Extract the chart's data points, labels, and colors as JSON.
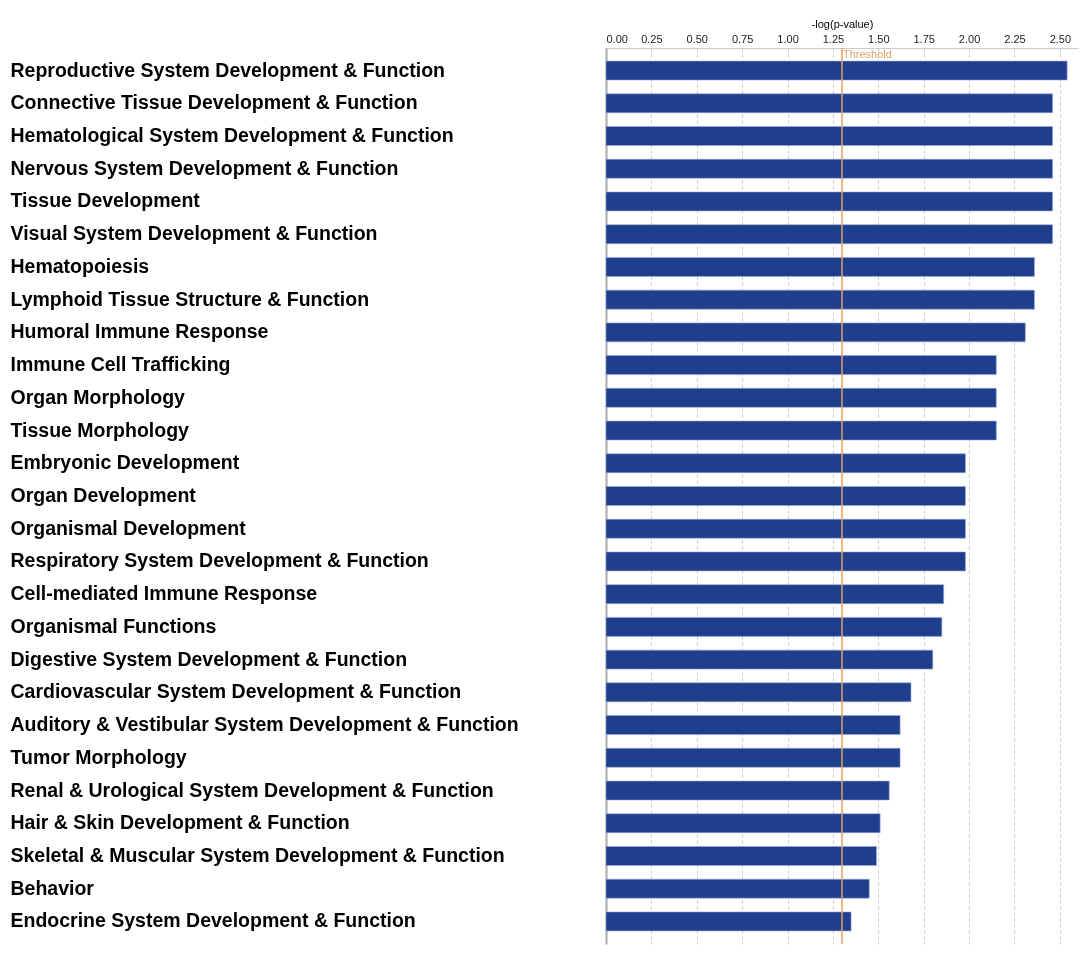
{
  "chart_data": {
    "type": "bar",
    "orientation": "horizontal",
    "xlabel": "-log(p-value)",
    "categories": [
      "Reproductive System Development & Function",
      "Connective Tissue Development & Function",
      "Hematological System Development & Function",
      "Nervous System Development & Function",
      "Tissue Development",
      "Visual System Development & Function",
      "Hematopoiesis",
      "Lymphoid Tissue Structure & Function",
      "Humoral Immune Response",
      "Immune Cell Trafficking",
      "Organ Morphology",
      "Tissue Morphology",
      "Embryonic Development",
      "Organ Development",
      "Organismal Development",
      "Respiratory System Development & Function",
      "Cell-mediated Immune Response",
      "Organismal Functions",
      "Digestive System Development & Function",
      "Cardiovascular System Development & Function",
      "Auditory & Vestibular System Development & Function",
      "Tumor Morphology",
      "Renal & Urological System Development & Function",
      "Hair & Skin Development & Function",
      "Skeletal & Muscular System Development & Function",
      "Behavior",
      "Endocrine System Development & Function"
    ],
    "values": [
      2.54,
      2.46,
      2.46,
      2.46,
      2.46,
      2.46,
      2.36,
      2.36,
      2.31,
      2.15,
      2.15,
      2.15,
      1.98,
      1.98,
      1.98,
      1.98,
      1.86,
      1.85,
      1.8,
      1.68,
      1.62,
      1.62,
      1.56,
      1.51,
      1.49,
      1.45,
      1.35
    ],
    "color": "#1f3e8c",
    "xlim": [
      0,
      2.6
    ],
    "xticks": [
      {
        "value": 0,
        "label": "0.00"
      },
      0.25,
      {
        "value": 0.5,
        "label": "0.50"
      },
      0.75,
      {
        "value": 1,
        "label": "1.00"
      },
      1.25,
      {
        "value": 1.5,
        "label": "1.50"
      },
      1.75,
      {
        "value": 2,
        "label": "2.00"
      },
      2.25,
      {
        "value": 2.5,
        "label": "2.50"
      }
    ],
    "ref_lines": [
      {
        "axis": "x",
        "value": 1.3,
        "label": "Threshold",
        "color": "#e0a060"
      }
    ],
    "grid": "x"
  }
}
